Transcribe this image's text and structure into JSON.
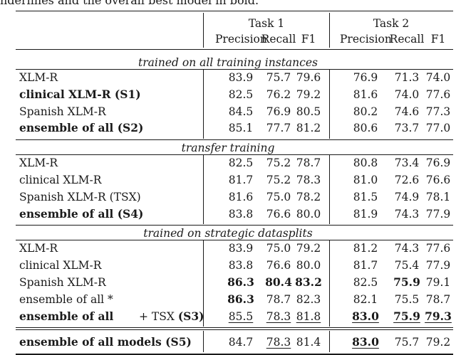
{
  "caption": "nderlines and the overall best model in bold.",
  "header": {
    "task1": "Task 1",
    "task2": "Task 2",
    "cols": [
      "Precision",
      "Recall",
      "F1",
      "Precision",
      "Recall",
      "F1"
    ]
  },
  "sections": [
    {
      "title": "trained on all training instances",
      "rows": [
        {
          "model": "XLM-R",
          "model_bold": false,
          "suffix": "",
          "values": [
            "83.9",
            "75.7",
            "79.6",
            "76.9",
            "71.3",
            "74.0"
          ],
          "bold": [],
          "underline": []
        },
        {
          "model": "clinical XLM-R (S1)",
          "model_bold": true,
          "suffix": "",
          "values": [
            "82.5",
            "76.2",
            "79.2",
            "81.6",
            "74.0",
            "77.6"
          ],
          "bold": [],
          "underline": []
        },
        {
          "model": "Spanish XLM-R",
          "model_bold": false,
          "suffix": "",
          "values": [
            "84.5",
            "76.9",
            "80.5",
            "80.2",
            "74.6",
            "77.3"
          ],
          "bold": [],
          "underline": []
        },
        {
          "model": "ensemble of all (S2)",
          "model_bold": true,
          "suffix": "",
          "values": [
            "85.1",
            "77.7",
            "81.2",
            "80.6",
            "73.7",
            "77.0"
          ],
          "bold": [],
          "underline": []
        }
      ]
    },
    {
      "title": "transfer training",
      "rows": [
        {
          "model": "XLM-R",
          "model_bold": false,
          "suffix": "",
          "values": [
            "82.5",
            "75.2",
            "78.7",
            "80.8",
            "73.4",
            "76.9"
          ],
          "bold": [],
          "underline": []
        },
        {
          "model": "clinical XLM-R",
          "model_bold": false,
          "suffix": "",
          "values": [
            "81.7",
            "75.2",
            "78.3",
            "81.0",
            "72.6",
            "76.6"
          ],
          "bold": [],
          "underline": []
        },
        {
          "model": "Spanish XLM-R (TSX)",
          "model_bold": false,
          "suffix": "",
          "values": [
            "81.6",
            "75.0",
            "78.2",
            "81.5",
            "74.9",
            "78.1"
          ],
          "bold": [],
          "underline": []
        },
        {
          "model": "ensemble of all (S4)",
          "model_bold": true,
          "suffix": "",
          "values": [
            "83.8",
            "76.6",
            "80.0",
            "81.9",
            "74.3",
            "77.9"
          ],
          "bold": [],
          "underline": []
        }
      ]
    },
    {
      "title": "trained on strategic datasplits",
      "rows": [
        {
          "model": "XLM-R",
          "model_bold": false,
          "suffix": "",
          "values": [
            "83.9",
            "75.0",
            "79.2",
            "81.2",
            "74.3",
            "77.6"
          ],
          "bold": [],
          "underline": []
        },
        {
          "model": "clinical XLM-R",
          "model_bold": false,
          "suffix": "",
          "values": [
            "83.8",
            "76.6",
            "80.0",
            "81.7",
            "75.4",
            "77.9"
          ],
          "bold": [],
          "underline": []
        },
        {
          "model": "Spanish XLM-R",
          "model_bold": false,
          "suffix": "",
          "values": [
            "86.3",
            "80.4",
            "83.2",
            "82.5",
            "75.9",
            "79.1"
          ],
          "bold": [
            0,
            1,
            2,
            4
          ],
          "underline": []
        },
        {
          "model": "ensemble of all *",
          "model_bold": false,
          "suffix": "",
          "values": [
            "86.3",
            "78.7",
            "82.3",
            "82.1",
            "75.5",
            "78.7"
          ],
          "bold": [
            0
          ],
          "underline": []
        },
        {
          "model": "ensemble of all",
          "model_bold": true,
          "suffix": " + TSX ",
          "suffix2": "(S3)",
          "values": [
            "85.5",
            "78.3",
            "81.8",
            "83.0",
            "75.9",
            "79.3"
          ],
          "bold": [
            3,
            4,
            5
          ],
          "underline": [
            0,
            1,
            2,
            3,
            4,
            5
          ]
        }
      ]
    }
  ],
  "final_row": {
    "model": "ensemble of all models (S5)",
    "values": [
      "84.7",
      "78.3",
      "81.4",
      "83.0",
      "75.7",
      "79.2"
    ],
    "bold": [
      3
    ],
    "underline": [
      1,
      3
    ]
  }
}
